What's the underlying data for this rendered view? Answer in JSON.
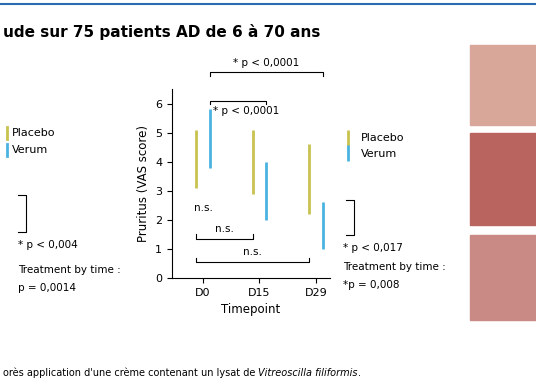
{
  "figure_title": "ude sur 75 patients AD de 6 à 70 ans",
  "caption": [
    "orès application d'une crème contenant un lysat de ",
    "Vitreoscilla filiformis",
    "."
  ],
  "left_fragment": {
    "legend": [
      "Placebo",
      "Verum"
    ],
    "p_value": "* p < 0,004",
    "interaction": [
      "Treatment by time :",
      "p = 0,0014"
    ]
  },
  "chart_data": {
    "type": "errorbar",
    "x_label": "Timepoint",
    "y_label": "Pruritus (VAS score)",
    "categories": [
      "D0",
      "D15",
      "D29"
    ],
    "ylim": [
      0,
      6.5
    ],
    "yticks": [
      0,
      1,
      2,
      3,
      4,
      5,
      6
    ],
    "series": [
      {
        "name": "Placebo",
        "color": "#c8c24e",
        "values": [
          4.1,
          4.0,
          3.4
        ],
        "error": [
          1.0,
          1.1,
          1.2
        ]
      },
      {
        "name": "Verum",
        "color": "#4bb3e0",
        "values": [
          4.8,
          3.0,
          1.8
        ],
        "error": [
          1.0,
          1.0,
          0.8
        ]
      }
    ],
    "comparisons": [
      {
        "from": [
          "Verum",
          "D0"
        ],
        "to": [
          "Verum",
          "D29"
        ],
        "label": "* p < 0,0001"
      },
      {
        "from": [
          "Verum",
          "D0"
        ],
        "to": [
          "Verum",
          "D15"
        ],
        "label": "* p < 0,0001"
      },
      {
        "from": [
          "Placebo",
          "D0"
        ],
        "to": [
          "Verum",
          "D0"
        ],
        "label": "n.s."
      },
      {
        "from": [
          "Placebo",
          "D0"
        ],
        "to": [
          "Placebo",
          "D15"
        ],
        "label": "n.s."
      },
      {
        "from": [
          "Placebo",
          "D0"
        ],
        "to": [
          "Placebo",
          "D29"
        ],
        "label": "n.s."
      }
    ],
    "annotations": [
      "* p < 0,017",
      "Treatment by time :",
      "*p = 0,008"
    ]
  }
}
